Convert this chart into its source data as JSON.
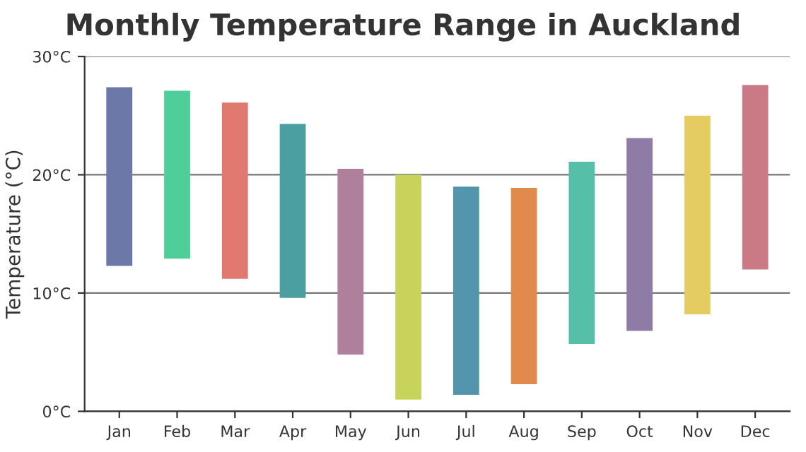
{
  "chart_data": {
    "type": "bar",
    "title": "Monthly Temperature Range in Auckland",
    "ylabel": "Temperature (°C)",
    "categories": [
      "Jan",
      "Feb",
      "Mar",
      "Apr",
      "May",
      "Jun",
      "Jul",
      "Aug",
      "Sep",
      "Oct",
      "Nov",
      "Dec"
    ],
    "base": [
      12.3,
      12.9,
      11.2,
      9.6,
      4.8,
      1.0,
      1.4,
      2.3,
      5.7,
      6.8,
      8.2,
      12.0
    ],
    "values": [
      15.1,
      14.2,
      14.9,
      14.7,
      15.7,
      19.0,
      17.6,
      16.6,
      15.4,
      16.3,
      16.8,
      15.6
    ],
    "colors": [
      "#6b78a8",
      "#4fce9a",
      "#e07a70",
      "#4b9fa0",
      "#b07f9b",
      "#c8d35c",
      "#5295ad",
      "#e08b4c",
      "#55bfa8",
      "#8e7ba6",
      "#e4cc61",
      "#c97a85"
    ],
    "ylim": [
      0,
      30
    ],
    "yticks": [
      {
        "value": 0,
        "label": "0°C"
      },
      {
        "value": 10,
        "label": "10°C"
      },
      {
        "value": 20,
        "label": "20°C"
      },
      {
        "value": 30,
        "label": "30°C"
      }
    ],
    "grid": "y"
  }
}
